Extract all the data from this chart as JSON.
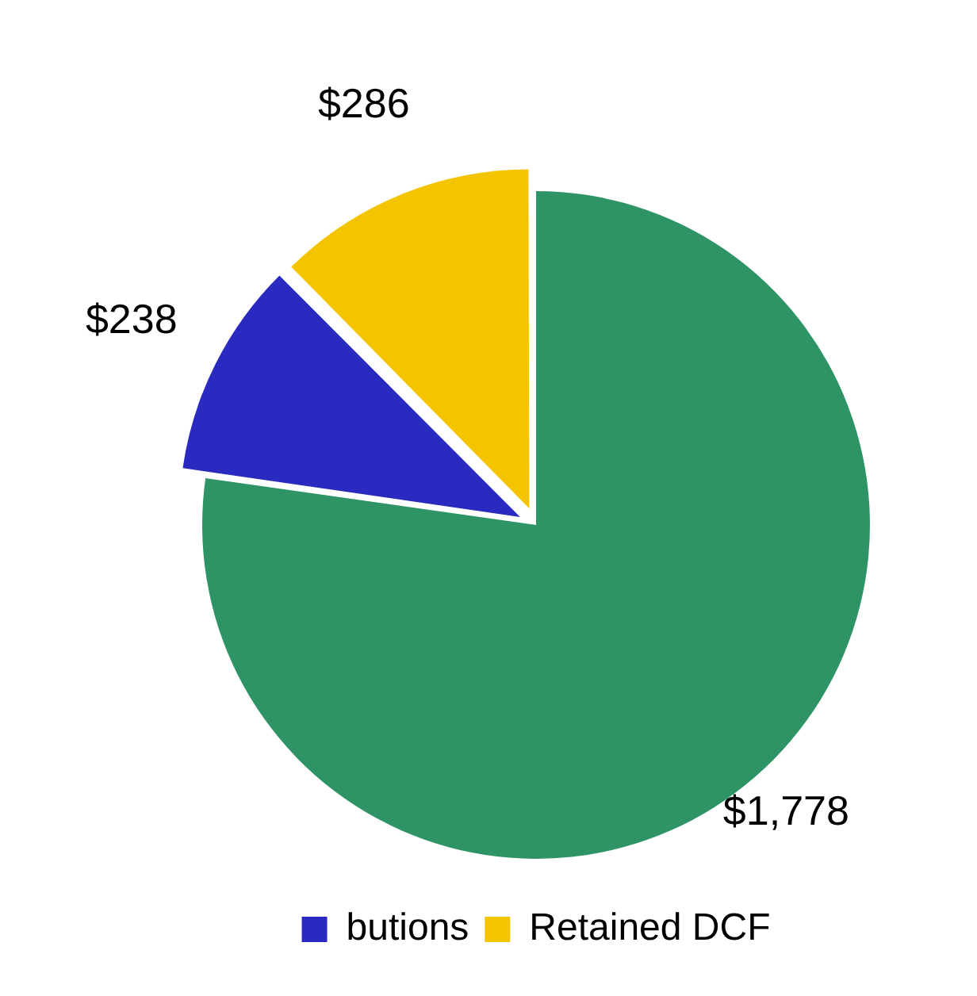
{
  "chart_data": {
    "type": "pie",
    "categories": [
      null,
      "butions",
      "Retained DCF"
    ],
    "values": [
      1778,
      238,
      286
    ],
    "colors": [
      "#2e9466",
      "#2a2ac0",
      "#f5c400"
    ],
    "value_labels": [
      "$1,778",
      "$238",
      "$286"
    ],
    "legend": "bottom"
  }
}
